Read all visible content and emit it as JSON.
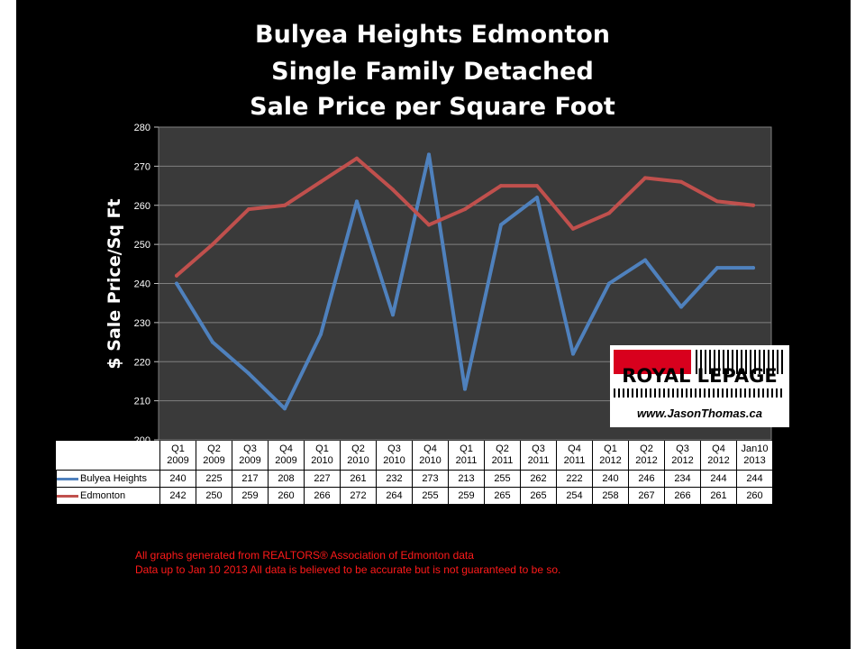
{
  "title": {
    "line1": "Bulyea Heights Edmonton",
    "line2": "Single Family Detached",
    "line3": "Sale Price per Square Foot"
  },
  "footnotes": {
    "line1": "All graphs generated from REALTORS® Association of Edmonton data",
    "line2": "Data up to  Jan 10 2013  All data is believed to be accurate but is not guaranteed to be so."
  },
  "logo": {
    "name": "ROYAL LEPAGE",
    "website": "www.JasonThomas.ca"
  },
  "colors": {
    "background": "#000000",
    "plot_area": "#3a3a3a",
    "gridline": "#808080",
    "bulyea": "#4f81bd",
    "edmonton": "#c0504d",
    "footnote": "#ff1a1a"
  },
  "chart_data": {
    "type": "line",
    "title": "Bulyea Heights Edmonton Single Family Detached Sale Price per Square Foot",
    "ylabel": "$ Sale Price/Sq Ft",
    "xlabel": "",
    "ylim": [
      200,
      280
    ],
    "yticks": [
      200,
      210,
      220,
      230,
      240,
      250,
      260,
      270,
      280
    ],
    "grid": true,
    "legend": "data-table",
    "categories": [
      [
        "Q1",
        "2009"
      ],
      [
        "Q2",
        "2009"
      ],
      [
        "Q3",
        "2009"
      ],
      [
        "Q4",
        "2009"
      ],
      [
        "Q1",
        "2010"
      ],
      [
        "Q2",
        "2010"
      ],
      [
        "Q3",
        "2010"
      ],
      [
        "Q4",
        "2010"
      ],
      [
        "Q1",
        "2011"
      ],
      [
        "Q2",
        "2011"
      ],
      [
        "Q3",
        "2011"
      ],
      [
        "Q4",
        "2011"
      ],
      [
        "Q1",
        "2012"
      ],
      [
        "Q2",
        "2012"
      ],
      [
        "Q3",
        "2012"
      ],
      [
        "Q4",
        "2012"
      ],
      [
        "Jan10",
        "2013"
      ]
    ],
    "series": [
      {
        "name": "Bulyea Heights",
        "color": "#4f81bd",
        "values": [
          240,
          225,
          217,
          208,
          227,
          261,
          232,
          273,
          213,
          255,
          262,
          222,
          240,
          246,
          234,
          244,
          244
        ]
      },
      {
        "name": "Edmonton",
        "color": "#c0504d",
        "values": [
          242,
          250,
          259,
          260,
          266,
          272,
          264,
          255,
          259,
          265,
          265,
          254,
          258,
          267,
          266,
          261,
          260
        ]
      }
    ]
  }
}
